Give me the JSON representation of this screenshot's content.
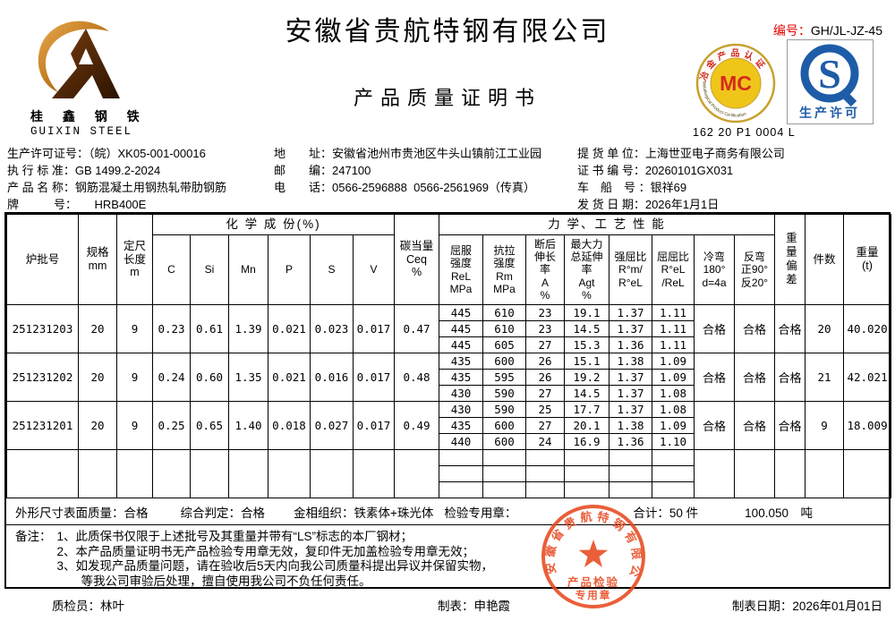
{
  "colors": {
    "accent_red": "#e60000",
    "stamp_red": "#e8491f",
    "mc_gold": "#f0c51a",
    "qs_blue": "#1e5ca8"
  },
  "header": {
    "company_name": "安徽省贵航特钢有限公司",
    "doc_title": "产品质量证明书",
    "serial": {
      "label": "编号：",
      "value": "GH/JL-JZ-45"
    },
    "logo": {
      "cn": "桂 鑫 钢 铁",
      "en": "GUIXIN STEEL"
    },
    "mc": {
      "ring_top": "冶金产品认证",
      "ring_bottom": "Metallurgical Product Certification",
      "center": "MC",
      "code": "162 20 P1 0004 L"
    },
    "qs": {
      "letter": "S",
      "label": "生产许可"
    }
  },
  "info": {
    "license": {
      "label": "生产许可证号：",
      "value": "（皖）XK05-001-00016"
    },
    "standard": {
      "label": "执 行 标 准：",
      "value": "GB 1499.2-2024"
    },
    "product": {
      "label": "产 品 名 称：",
      "value": "钢筋混凝土用钢热轧带肋钢筋"
    },
    "grade": {
      "label": "牌　　　号：　　",
      "value": "HRB400E"
    },
    "address": {
      "label": "地　　址：",
      "value": "安徽省池州市贵池区牛头山镇前江工业园"
    },
    "postcode": {
      "label": "邮　　编：",
      "value": "247100"
    },
    "phone": {
      "label": "电　　话：",
      "value": "0566-2596888  0566-2561969（传真）"
    },
    "consignee": {
      "label": "提 货 单 位：",
      "value": "上海世亚电子商务有限公司"
    },
    "cert_no": {
      "label": "证 书 编 号：",
      "value": "20260101GX031"
    },
    "vehicle": {
      "label": "车　船　号 ：",
      "value": "银祥69"
    },
    "ship_date": {
      "label": "发 货 日 期：",
      "value": "2026年1月1日"
    }
  },
  "table": {
    "headers": {
      "batch": "炉批号",
      "spec": "规格\nmm",
      "length": "定尺\n长度\nm",
      "chem_group": "化 学 成 份(%)",
      "chem_cols": [
        "C",
        "Si",
        "Mn",
        "P",
        "S",
        "V"
      ],
      "ceq": "碳当量\nCeq\n%",
      "mech_group": "力 学、工 艺 性 能",
      "mech_cols": [
        "屈服\n强度\nReL\nMPa",
        "抗拉\n强度\nRm\nMPa",
        "断后\n伸长\n率\nA\n%",
        "最大力\n总延伸\n率\nAgt\n%",
        "强屈比\nR°m/\nR°eL",
        "屈屈比\nR°eL\n/ReL",
        "冷弯\n180°\nd=4a",
        "反弯\n正90°\n反20°"
      ],
      "weight_dev": "重量偏差",
      "pieces": "件数",
      "weight": "重量\n(t)"
    },
    "groups": [
      {
        "batch": "251231203",
        "spec": "20",
        "length": "9",
        "chem": [
          "0.23",
          "0.61",
          "1.39",
          "0.021",
          "0.023",
          "0.017"
        ],
        "ceq": "0.47",
        "mech": [
          [
            "445",
            "610",
            "23",
            "19.1",
            "1.37",
            "1.11"
          ],
          [
            "445",
            "610",
            "23",
            "14.5",
            "1.37",
            "1.11"
          ],
          [
            "445",
            "605",
            "27",
            "15.3",
            "1.36",
            "1.11"
          ]
        ],
        "cold_bend": "合格",
        "reverse_bend": "合格",
        "weight_dev": "合格",
        "pieces": "20",
        "weight": "40.020"
      },
      {
        "batch": "251231202",
        "spec": "20",
        "length": "9",
        "chem": [
          "0.24",
          "0.60",
          "1.35",
          "0.021",
          "0.016",
          "0.017"
        ],
        "ceq": "0.48",
        "mech": [
          [
            "435",
            "600",
            "26",
            "15.1",
            "1.38",
            "1.09"
          ],
          [
            "435",
            "595",
            "26",
            "19.2",
            "1.37",
            "1.09"
          ],
          [
            "430",
            "590",
            "27",
            "14.5",
            "1.37",
            "1.08"
          ]
        ],
        "cold_bend": "合格",
        "reverse_bend": "合格",
        "weight_dev": "合格",
        "pieces": "21",
        "weight": "42.021"
      },
      {
        "batch": "251231201",
        "spec": "20",
        "length": "9",
        "chem": [
          "0.25",
          "0.65",
          "1.40",
          "0.018",
          "0.027",
          "0.017"
        ],
        "ceq": "0.49",
        "mech": [
          [
            "430",
            "590",
            "25",
            "17.7",
            "1.37",
            "1.08"
          ],
          [
            "435",
            "600",
            "27",
            "20.1",
            "1.38",
            "1.09"
          ],
          [
            "440",
            "600",
            "24",
            "16.9",
            "1.36",
            "1.10"
          ]
        ],
        "cold_bend": "合格",
        "reverse_bend": "合格",
        "weight_dev": "合格",
        "pieces": "9",
        "weight": "18.009"
      },
      {
        "batch": "",
        "spec": "",
        "length": "",
        "chem": [
          "",
          "",
          "",
          "",
          "",
          ""
        ],
        "ceq": "",
        "mech": [
          [
            "",
            "",
            "",
            "",
            "",
            ""
          ],
          [
            "",
            "",
            "",
            "",
            "",
            ""
          ],
          [
            "",
            "",
            "",
            "",
            "",
            ""
          ]
        ],
        "cold_bend": "",
        "reverse_bend": "",
        "weight_dev": "",
        "pieces": "",
        "weight": ""
      }
    ]
  },
  "summary": {
    "surface": {
      "label": "外形尺寸表面质量：",
      "value": "合格"
    },
    "overall": {
      "label": "综合判定：",
      "value": "合格"
    },
    "metallographic": {
      "label": "金相组织：",
      "value": "铁素体+珠光体"
    },
    "seal": {
      "label": "检验专用章："
    },
    "total": {
      "label": "合计：",
      "value": "50 件"
    },
    "total_weight": {
      "value": "100.050",
      "unit": "吨"
    }
  },
  "notes": {
    "label": "备注：",
    "lines": [
      "1、此质保书仅限于上述批号及其重量并带有“LS”标志的本厂钢材；",
      "2、本产品质量证明书无产品检验专用章无效，复印件无加盖检验专用章无效；",
      "3、如发现产品质量问题，请在验收后5天内向我公司质量科提出异议并保留实物，",
      "　　等我公司审验后处理，擅自使用我公司不负任何责任。"
    ]
  },
  "footer": {
    "inspector": {
      "label": "质检员：",
      "value": "林叶"
    },
    "tabulator": {
      "label": "制表：",
      "value": "申艳霞"
    },
    "date": {
      "label": "制表日期：",
      "value": "2026年01月01日"
    }
  },
  "stamp": {
    "company": "安徽省贵航特钢有限公司",
    "line1": "产品检验",
    "line2": "专用章"
  }
}
